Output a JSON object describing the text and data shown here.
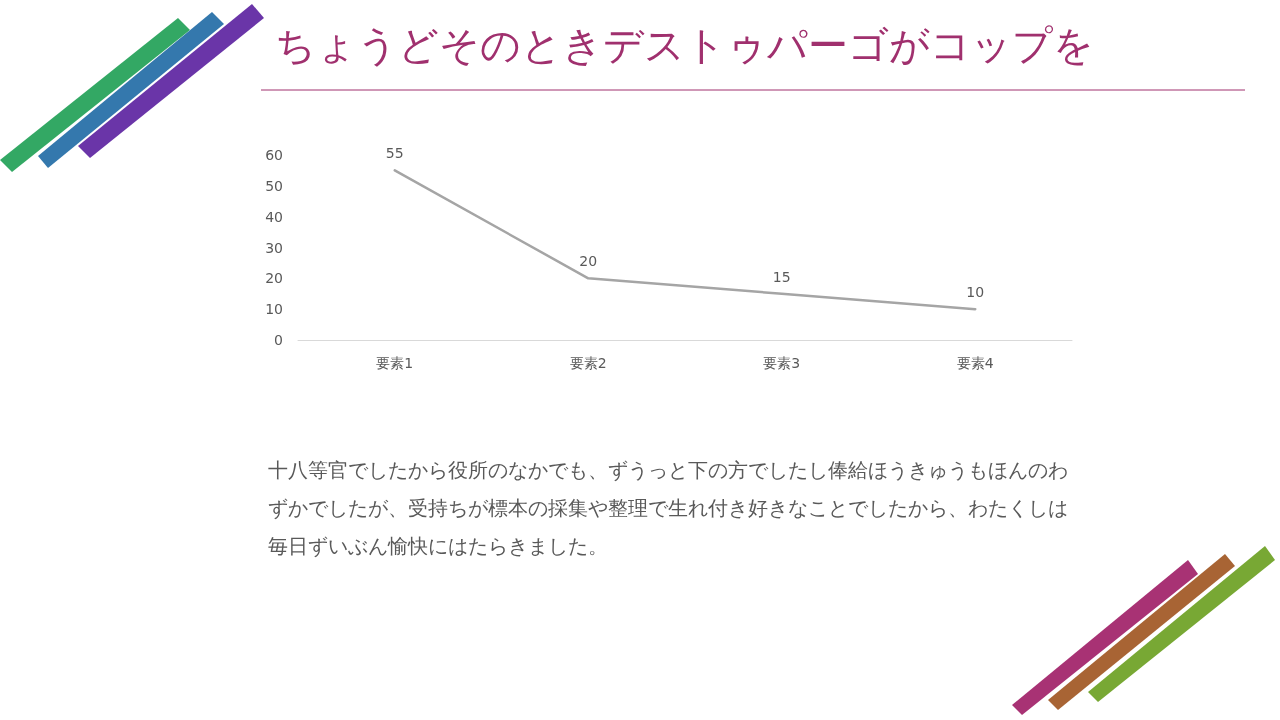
{
  "chart_data": {
    "type": "line",
    "title": "ちょうどそのときデストゥパーゴがコップを",
    "categories": [
      "要素1",
      "要素2",
      "要素3",
      "要素4"
    ],
    "series": [
      {
        "color": "#a5a5a5",
        "values": [
          55,
          20,
          15,
          10
        ]
      }
    ],
    "ylim": [
      0,
      60
    ],
    "yticks": [
      0,
      10,
      20,
      30,
      40,
      50,
      60
    ],
    "grid": false,
    "data_labels": true,
    "marker": "none",
    "line_style": "solid",
    "annotations": [
      "十八等官でしたから役所のなかでも、ずうっと下の方でしたし俸給ほうきゅうもほんのわずかでしたが、受持ちが標本の採集や整理で生れ付き好きなことでしたから、わたくしは毎日ずいぶん愉快にはたらきました。"
    ]
  }
}
